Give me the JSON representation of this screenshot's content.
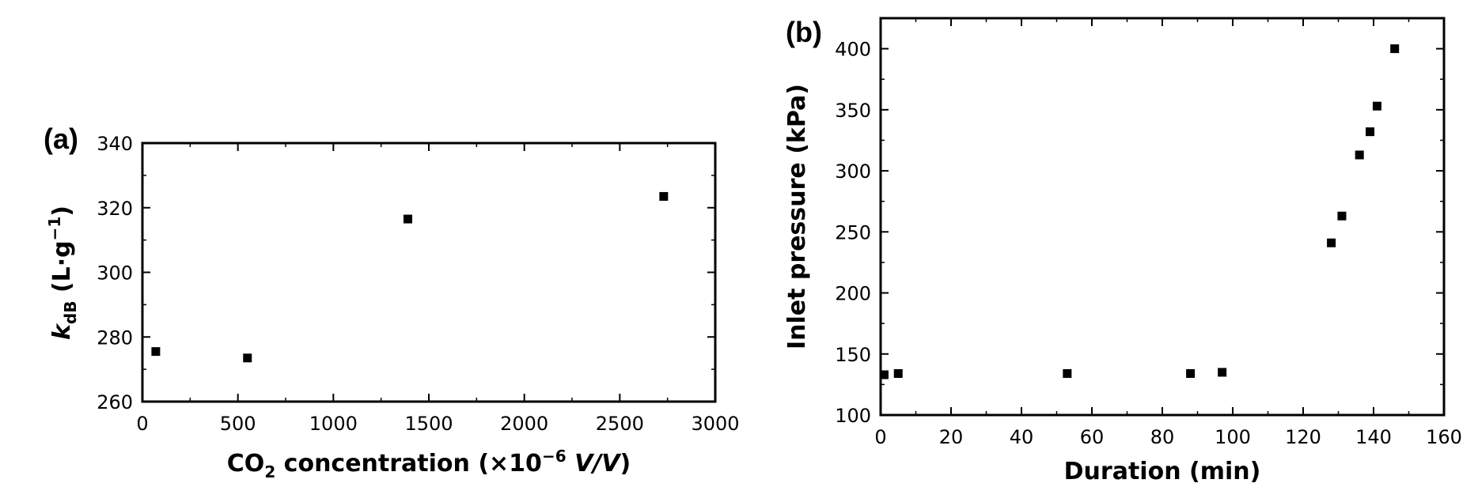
{
  "chart_data": [
    {
      "type": "scatter",
      "panel_label": "(a)",
      "xlabel_parts": [
        "CO",
        "2",
        " concentration  (×10",
        "−6",
        " ",
        "V/V",
        ")"
      ],
      "ylabel_parts": [
        "k",
        "dB",
        "  (L·g",
        "−1",
        ")"
      ],
      "xlim": [
        0,
        3000
      ],
      "ylim": [
        260,
        340
      ],
      "xticks": [
        0,
        500,
        1000,
        1500,
        2000,
        2500,
        3000
      ],
      "yticks": [
        260,
        280,
        300,
        320,
        340
      ],
      "x": [
        70,
        550,
        1390,
        2730
      ],
      "y": [
        275.5,
        273.5,
        316.5,
        323.5
      ]
    },
    {
      "type": "scatter",
      "panel_label": "(b)",
      "xlabel": "Duration (min)",
      "ylabel": "Inlet pressure (kPa)",
      "xlim": [
        0,
        160
      ],
      "ylim": [
        100,
        425
      ],
      "xticks": [
        0,
        20,
        40,
        60,
        80,
        100,
        120,
        140,
        160
      ],
      "yticks": [
        100,
        150,
        200,
        250,
        300,
        350,
        400
      ],
      "x": [
        1,
        5,
        53,
        88,
        97,
        128,
        131,
        136,
        139,
        141,
        146
      ],
      "y": [
        133,
        134,
        134,
        134,
        135,
        241,
        263,
        313,
        332,
        353,
        400
      ]
    }
  ]
}
